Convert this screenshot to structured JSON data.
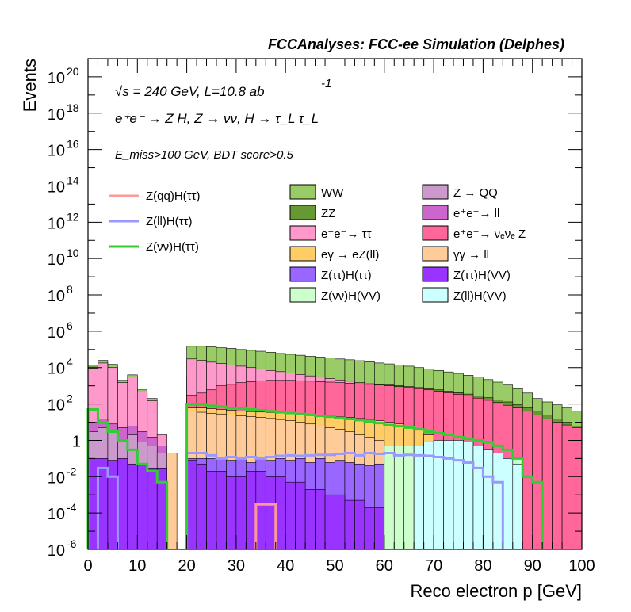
{
  "chart_data": {
    "type": "area",
    "title": "FCCAnalyses: FCC-ee Simulation (Delphes)",
    "xlabel": "Reco electron p [GeV]",
    "ylabel": "Events",
    "xlim": [
      0,
      100
    ],
    "ylim": [
      1e-06,
      1e+21
    ],
    "yscale": "log",
    "bin_width": 2,
    "x_ticks": [
      "0",
      "10",
      "20",
      "30",
      "40",
      "50",
      "60",
      "70",
      "80",
      "90",
      "100"
    ],
    "y_ticks": [
      {
        "base": "10",
        "exp": "20",
        "value": 1e+20
      },
      {
        "base": "10",
        "exp": "18",
        "value": 1e+18
      },
      {
        "base": "10",
        "exp": "16",
        "value": 1e+16
      },
      {
        "base": "10",
        "exp": "14",
        "value": 100000000000000.0
      },
      {
        "base": "10",
        "exp": "12",
        "value": 1000000000000.0
      },
      {
        "base": "10",
        "exp": "10",
        "value": 10000000000.0
      },
      {
        "base": "10",
        "exp": "8",
        "value": 100000000.0
      },
      {
        "base": "10",
        "exp": "6",
        "value": 1000000.0
      },
      {
        "base": "10",
        "exp": "4",
        "value": 10000.0
      },
      {
        "base": "10",
        "exp": "2",
        "value": 100
      },
      {
        "base": "1",
        "exp": "",
        "value": 1
      },
      {
        "base": "10",
        "exp": "-2",
        "value": 0.01
      },
      {
        "base": "10",
        "exp": "-4",
        "value": 0.0001
      },
      {
        "base": "10",
        "exp": "-6",
        "value": 1e-06
      }
    ],
    "annotations": {
      "sqrt_s": "√s = 240 GeV, L=10.8 ab",
      "lumi_exp": "-1",
      "process": "e⁺e⁻ → Z H, Z → νν, H → τ_L τ_L",
      "selection": "E_miss>100 GeV, BDT score>0.5"
    },
    "legend": "center",
    "stack_order": [
      "Z(ll)H(VV)",
      "Z(νν)H(VV)",
      "Z(ττ)H(VV)",
      "Z(ττ)H(ττ)",
      "Z → QQ",
      "e⁺e⁻ → ll",
      "γγ → ll",
      "eγ → eZ(ll)",
      "e⁺e⁻ → νₑνₑ Z",
      "e⁺e⁻ → ττ",
      "ZZ",
      "WW"
    ],
    "backgrounds": [
      {
        "name": "WW",
        "color": "#99cc66",
        "x": [
          1,
          3,
          5,
          7,
          9,
          11,
          13,
          21,
          23,
          25,
          27,
          29,
          31,
          33,
          35,
          37,
          39,
          41,
          43,
          45,
          47,
          49,
          51,
          53,
          55,
          57,
          59,
          61,
          63,
          65,
          67,
          69,
          71,
          73,
          75,
          77,
          79,
          81,
          83,
          85,
          87,
          89,
          91,
          93,
          95,
          97,
          99
        ],
        "values": [
          12000,
          25000,
          15000,
          2000,
          4000,
          600,
          200,
          150000,
          150000,
          140000,
          125000,
          115000,
          100000,
          90000,
          80000,
          70000,
          60000,
          54000,
          48000,
          42000,
          38000,
          34000,
          30000,
          27000,
          24000,
          21000,
          18000,
          16000,
          14000,
          12000,
          10000,
          8500,
          7000,
          5800,
          4800,
          3800,
          3000,
          2200,
          1600,
          1100,
          700,
          400,
          200,
          130,
          90,
          60,
          40
        ]
      },
      {
        "name": "ZZ",
        "color": "#669933",
        "x": [
          21,
          23,
          25,
          27,
          29,
          31,
          33,
          35,
          37,
          39,
          41,
          43,
          45,
          47,
          49,
          51,
          53,
          55,
          57,
          59,
          61,
          63,
          65,
          67,
          69,
          71,
          73,
          75,
          77,
          79,
          81,
          83,
          85,
          87,
          89,
          91,
          93,
          95,
          97,
          99
        ],
        "values": [
          3000,
          3000,
          2900,
          2800,
          2700,
          2600,
          2500,
          2400,
          2300,
          2200,
          2100,
          2000,
          1900,
          1800,
          1700,
          1600,
          1500,
          1400,
          1300,
          1200,
          1100,
          1000,
          900,
          800,
          700,
          600,
          500,
          420,
          350,
          280,
          220,
          170,
          130,
          90,
          60,
          40,
          25,
          15,
          10,
          6
        ]
      },
      {
        "name": "e⁺e⁻→ ττ",
        "color": "#ff99cc",
        "x": [
          1,
          3,
          5,
          7,
          9,
          11,
          13,
          15,
          21,
          23,
          25,
          27,
          29,
          31,
          33,
          35,
          37,
          39,
          41,
          43,
          45,
          47,
          49,
          51,
          53,
          55,
          57,
          59,
          61,
          63,
          65,
          67,
          69,
          71,
          73,
          75,
          77,
          79,
          81,
          83,
          85,
          87,
          89
        ],
        "values": [
          9000,
          18000,
          10000,
          1500,
          3000,
          450,
          150,
          2,
          30000,
          25000,
          20000,
          17000,
          14000,
          12000,
          10000,
          8500,
          7000,
          6000,
          5000,
          4200,
          3500,
          3000,
          2500,
          2100,
          1800,
          1500,
          1200,
          1000,
          850,
          700,
          580,
          480,
          390,
          320,
          250,
          200,
          150,
          110,
          80,
          55,
          35,
          20,
          10
        ]
      },
      {
        "name": "e⁺e⁻→ νₑνₑ Z",
        "color": "#ff6699",
        "x": [
          21,
          23,
          25,
          27,
          29,
          31,
          33,
          35,
          37,
          39,
          41,
          43,
          45,
          47,
          49,
          51,
          53,
          55,
          57,
          59,
          61,
          63,
          65,
          67,
          69,
          71,
          73,
          75,
          77,
          79,
          81,
          83,
          85,
          87,
          89,
          91,
          93,
          95,
          97,
          99
        ],
        "values": [
          300,
          400,
          600,
          1000,
          1200,
          1500,
          1700,
          1900,
          2000,
          2000,
          2000,
          1900,
          1800,
          1700,
          1600,
          1500,
          1400,
          1300,
          1200,
          1100,
          1000,
          900,
          800,
          700,
          600,
          500,
          420,
          340,
          270,
          210,
          160,
          120,
          85,
          60,
          40,
          25,
          15,
          10,
          7,
          5
        ]
      },
      {
        "name": "eγ → eZ(ll)",
        "color": "#ffcc66",
        "x": [
          21,
          23,
          25,
          27,
          29,
          31,
          33,
          35,
          37,
          39,
          41,
          43,
          45,
          47,
          49,
          51,
          53,
          55,
          57,
          59,
          61,
          63,
          65,
          67,
          69
        ],
        "values": [
          60,
          60,
          55,
          50,
          45,
          40,
          38,
          36,
          34,
          32,
          30,
          28,
          26,
          24,
          22,
          20,
          18,
          16,
          14,
          12,
          10,
          8,
          6,
          4,
          2
        ]
      },
      {
        "name": "γγ → ll",
        "color": "#ffcc99",
        "x": [
          13,
          15,
          17,
          21,
          23,
          25,
          27,
          29,
          31,
          33,
          35,
          37,
          39,
          41,
          43,
          45,
          47,
          49,
          51,
          53,
          55,
          57,
          59
        ],
        "values": [
          0.5,
          0.3,
          0.2,
          40,
          35,
          30,
          28,
          25,
          22,
          20,
          18,
          16,
          14,
          12,
          10,
          8,
          6,
          5,
          4,
          3,
          2,
          1.5,
          1
        ]
      },
      {
        "name": "e⁺e⁻→ ll",
        "color": "#cc66cc",
        "x": [
          1,
          3,
          5,
          7,
          9,
          11,
          13,
          15
        ],
        "values": [
          10,
          15,
          8,
          5,
          6,
          3,
          1.5,
          0.5
        ]
      },
      {
        "name": "Z → QQ",
        "color": "#cc99cc",
        "x": [
          1,
          3,
          5,
          7,
          9,
          11,
          13,
          15
        ],
        "values": [
          3,
          5,
          3,
          1,
          2,
          0.8,
          0.5,
          0.2
        ]
      },
      {
        "name": "Z(ττ)H(ττ)",
        "color": "#9966ff",
        "x": [
          15,
          21,
          23,
          25,
          27,
          29,
          31,
          33,
          35,
          37,
          39,
          41,
          43,
          45,
          47,
          49,
          51,
          53,
          55,
          57,
          59,
          61,
          63,
          65,
          67
        ],
        "values": [
          0.03,
          0.1,
          0.1,
          0.1,
          0.1,
          0.08,
          0.1,
          0.06,
          0.1,
          0.08,
          0.1,
          0.08,
          0.1,
          0.06,
          0.1,
          0.06,
          0.08,
          0.06,
          0.05,
          0.04,
          0.05,
          0.03,
          0.02,
          0.03,
          0.02
        ]
      },
      {
        "name": "Z(ττ)H(VV)",
        "color": "#9933ff",
        "x": [
          1,
          3,
          5,
          7,
          9,
          11,
          13,
          15,
          21,
          23,
          25,
          27,
          29,
          31,
          33,
          35,
          37,
          39,
          41,
          43,
          45,
          47,
          49,
          51,
          53,
          55,
          57,
          59,
          61,
          63,
          65,
          67
        ],
        "values": [
          0.1,
          0.1,
          0.08,
          0.1,
          0.05,
          0.05,
          0.03,
          0.03,
          0.08,
          0.05,
          0.02,
          0.02,
          0.01,
          0.01,
          0.02,
          0.02,
          0.01,
          0.01,
          0.005,
          0.005,
          0.002,
          0.002,
          0.001,
          0.001,
          0.0005,
          0.0005,
          0.0002,
          0.0002,
          0.0001,
          0.0001,
          0.0001,
          0.0001
        ]
      },
      {
        "name": "Z(νν)H(VV)",
        "color": "#ccffcc",
        "x": [
          61,
          63,
          65,
          67,
          69,
          71,
          73,
          75,
          77,
          79,
          81,
          83,
          85,
          87
        ],
        "values": [
          0.5,
          0.5,
          0.5,
          0.5,
          0.4,
          0.4,
          0.4,
          0.3,
          0.3,
          0.3,
          0.2,
          0.2,
          0.1,
          0.1
        ]
      },
      {
        "name": "Z(ll)H(VV)",
        "color": "#ccffff",
        "x": [
          67,
          69,
          71,
          73,
          75,
          77,
          79,
          81,
          83,
          85,
          87
        ],
        "values": [
          0.5,
          0.8,
          1,
          1,
          1,
          0.8,
          0.5,
          0.3,
          0.2,
          0.1,
          0.05
        ]
      }
    ],
    "signals": [
      {
        "name": "Z(qq)H(ττ)",
        "color": "#ff9999",
        "x": [
          35,
          37
        ],
        "values": [
          0.0003,
          0.0003
        ]
      },
      {
        "name": "Z(ll)H(ττ)",
        "color": "#9999ff",
        "x": [
          3,
          5,
          21,
          23,
          25,
          27,
          29,
          31,
          33,
          35,
          37,
          39,
          41,
          43,
          45,
          47,
          49,
          51,
          53,
          55,
          57,
          59,
          61,
          63,
          65,
          67,
          69,
          71,
          73,
          75,
          77,
          79,
          81,
          83
        ],
        "values": [
          0.03,
          0.01,
          0.2,
          0.2,
          0.15,
          0.1,
          0.12,
          0.1,
          0.12,
          0.1,
          0.12,
          0.14,
          0.15,
          0.14,
          0.15,
          0.16,
          0.16,
          0.18,
          0.2,
          0.15,
          0.2,
          0.18,
          0.2,
          0.15,
          0.16,
          0.15,
          0.14,
          0.12,
          0.1,
          0.08,
          0.06,
          0.03,
          0.01,
          0.005
        ]
      },
      {
        "name": "Z(νν)H(ττ)",
        "color": "#33cc33",
        "x": [
          1,
          3,
          5,
          7,
          9,
          11,
          13,
          15,
          21,
          23,
          25,
          27,
          29,
          31,
          33,
          35,
          37,
          39,
          41,
          43,
          45,
          47,
          49,
          51,
          53,
          55,
          57,
          59,
          61,
          63,
          65,
          67,
          69,
          71,
          73,
          75,
          77,
          79,
          81,
          83,
          85,
          87,
          89,
          91
        ],
        "values": [
          50,
          10,
          3,
          1,
          0.3,
          0.05,
          0.02,
          0.005,
          100,
          100,
          80,
          70,
          60,
          55,
          50,
          45,
          40,
          36,
          32,
          28,
          25,
          22,
          20,
          17,
          15,
          13,
          11,
          9,
          7,
          6,
          5,
          4,
          3,
          2.5,
          2,
          1.5,
          1.2,
          1,
          0.8,
          0.5,
          0.3,
          0.1,
          0.01,
          0.005
        ]
      }
    ]
  },
  "legend_labels": {
    "sig_qq": "Z(qq)H(ττ)",
    "sig_ll": "Z(ll)H(ττ)",
    "sig_nn": "Z(νν)H(ττ)",
    "ww": "WW",
    "zqq": "Z → QQ",
    "zz": "ZZ",
    "eell": "e⁺e⁻→ ll",
    "eett": "e⁺e⁻→ ττ",
    "eevvz": "e⁺e⁻→ νₑνₑ Z",
    "egz": "eγ → eZ(ll)",
    "ggll": "γγ → ll",
    "zttHtt": "Z(ττ)H(ττ)",
    "zttHvv": "Z(ττ)H(VV)",
    "znnHvv": "Z(νν)H(VV)",
    "zllHvv": "Z(ll)H(VV)"
  }
}
